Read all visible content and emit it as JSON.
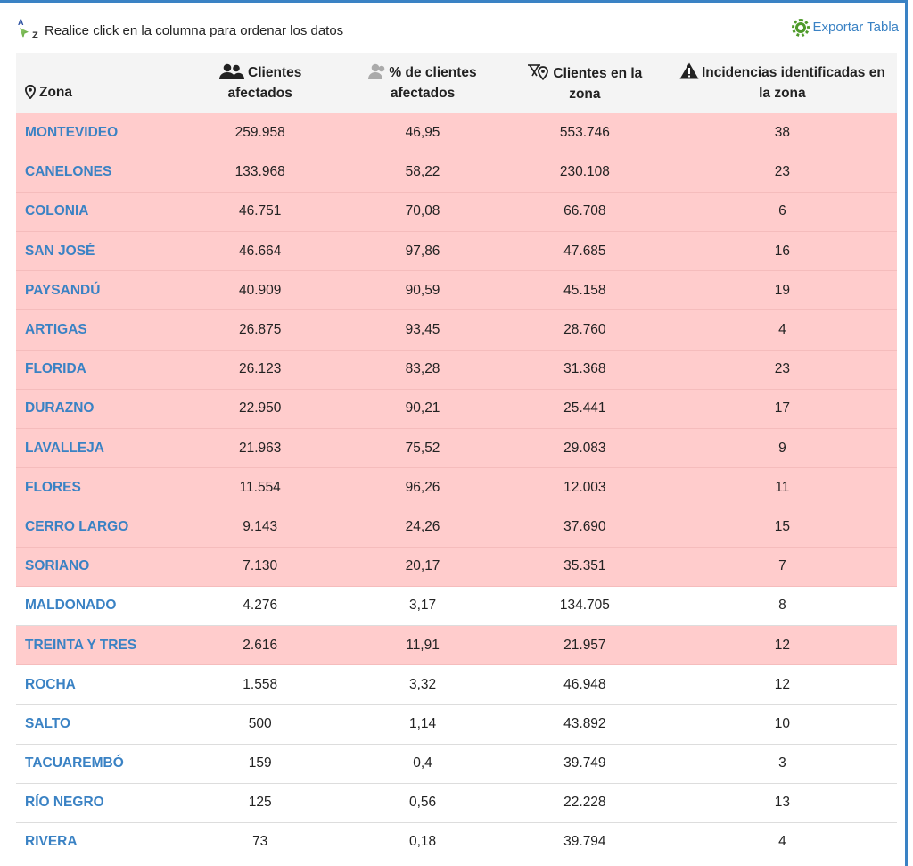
{
  "toolbar": {
    "sort_hint": "Realice click en la columna para ordenar los datos",
    "sort_icon": "sort-az-icon",
    "export_label": "Exportar Tabla",
    "export_icon": "gear-icon",
    "export_color": "#3a82c4"
  },
  "table": {
    "columns": [
      {
        "line1": "Zona",
        "line2": "",
        "icon": "location-pin-icon"
      },
      {
        "line1": "Clientes",
        "line2": "afectados",
        "icon": "users-icon"
      },
      {
        "line1": "% de clientes",
        "line2": "afectados",
        "icon": "users-percent-icon"
      },
      {
        "line1": "Clientes en la",
        "line2": "zona",
        "icon": "users-location-icon"
      },
      {
        "line1": "Incidencias identificadas en",
        "line2": "la zona",
        "icon": "warning-icon"
      }
    ],
    "highlight_color": "#ffcccc",
    "rows": [
      {
        "zona": "MONTEVIDEO",
        "afectados": "259.958",
        "pct": "46,95",
        "clientes": "553.746",
        "incidencias": "38",
        "alert": true
      },
      {
        "zona": "CANELONES",
        "afectados": "133.968",
        "pct": "58,22",
        "clientes": "230.108",
        "incidencias": "23",
        "alert": true
      },
      {
        "zona": "COLONIA",
        "afectados": "46.751",
        "pct": "70,08",
        "clientes": "66.708",
        "incidencias": "6",
        "alert": true
      },
      {
        "zona": "SAN JOSÉ",
        "afectados": "46.664",
        "pct": "97,86",
        "clientes": "47.685",
        "incidencias": "16",
        "alert": true
      },
      {
        "zona": "PAYSANDÚ",
        "afectados": "40.909",
        "pct": "90,59",
        "clientes": "45.158",
        "incidencias": "19",
        "alert": true
      },
      {
        "zona": "ARTIGAS",
        "afectados": "26.875",
        "pct": "93,45",
        "clientes": "28.760",
        "incidencias": "4",
        "alert": true
      },
      {
        "zona": "FLORIDA",
        "afectados": "26.123",
        "pct": "83,28",
        "clientes": "31.368",
        "incidencias": "23",
        "alert": true
      },
      {
        "zona": "DURAZNO",
        "afectados": "22.950",
        "pct": "90,21",
        "clientes": "25.441",
        "incidencias": "17",
        "alert": true
      },
      {
        "zona": "LAVALLEJA",
        "afectados": "21.963",
        "pct": "75,52",
        "clientes": "29.083",
        "incidencias": "9",
        "alert": true
      },
      {
        "zona": "FLORES",
        "afectados": "11.554",
        "pct": "96,26",
        "clientes": "12.003",
        "incidencias": "11",
        "alert": true
      },
      {
        "zona": "CERRO LARGO",
        "afectados": "9.143",
        "pct": "24,26",
        "clientes": "37.690",
        "incidencias": "15",
        "alert": true
      },
      {
        "zona": "SORIANO",
        "afectados": "7.130",
        "pct": "20,17",
        "clientes": "35.351",
        "incidencias": "7",
        "alert": true
      },
      {
        "zona": "MALDONADO",
        "afectados": "4.276",
        "pct": "3,17",
        "clientes": "134.705",
        "incidencias": "8",
        "alert": false
      },
      {
        "zona": "TREINTA Y TRES",
        "afectados": "2.616",
        "pct": "11,91",
        "clientes": "21.957",
        "incidencias": "12",
        "alert": true
      },
      {
        "zona": "ROCHA",
        "afectados": "1.558",
        "pct": "3,32",
        "clientes": "46.948",
        "incidencias": "12",
        "alert": false
      },
      {
        "zona": "SALTO",
        "afectados": "500",
        "pct": "1,14",
        "clientes": "43.892",
        "incidencias": "10",
        "alert": false
      },
      {
        "zona": "TACUAREMBÓ",
        "afectados": "159",
        "pct": "0,4",
        "clientes": "39.749",
        "incidencias": "3",
        "alert": false
      },
      {
        "zona": "RÍO NEGRO",
        "afectados": "125",
        "pct": "0,56",
        "clientes": "22.228",
        "incidencias": "13",
        "alert": false
      },
      {
        "zona": "RIVERA",
        "afectados": "73",
        "pct": "0,18",
        "clientes": "39.794",
        "incidencias": "4",
        "alert": false
      }
    ]
  }
}
